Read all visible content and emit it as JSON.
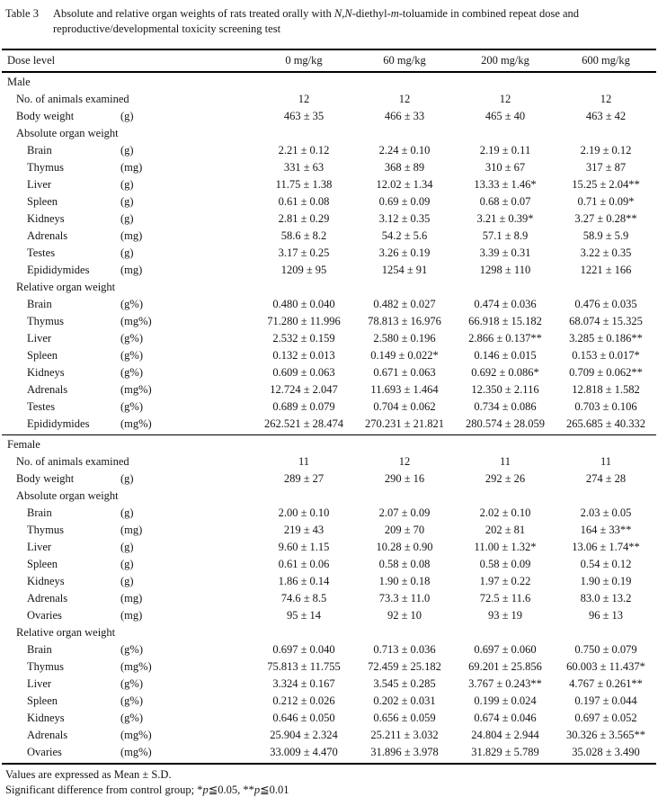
{
  "table": {
    "label": "Table 3",
    "caption_segments": [
      {
        "text": "Absolute and relative organ weights of rats treated orally with "
      },
      {
        "text": "N,N",
        "italic": true
      },
      {
        "text": "-diethyl-"
      },
      {
        "text": "m",
        "italic": true
      },
      {
        "text": "-toluamide in combined repeat dose and reproductive/developmental toxicity screening test"
      }
    ],
    "header": {
      "label": "Dose level",
      "doses": [
        "0 mg/kg",
        "60 mg/kg",
        "200 mg/kg",
        "600 mg/kg"
      ]
    },
    "sections": [
      {
        "title": "Male",
        "rows": [
          {
            "label": "No. of animals examined",
            "unit": "",
            "indent": 1,
            "values": [
              "12",
              "12",
              "12",
              "12"
            ]
          },
          {
            "label": "Body weight",
            "unit": "(g)",
            "indent": 1,
            "values": [
              "463 ± 35",
              "466 ± 33",
              "465 ± 40",
              "463 ± 42"
            ]
          },
          {
            "label": "Absolute organ weight",
            "unit": "",
            "indent": 1,
            "values": []
          },
          {
            "label": "Brain",
            "unit": "(g)",
            "indent": 2,
            "values": [
              "2.21 ± 0.12",
              "2.24 ± 0.10",
              "2.19 ± 0.11",
              "2.19 ± 0.12"
            ]
          },
          {
            "label": "Thymus",
            "unit": "(mg)",
            "indent": 2,
            "values": [
              "331 ± 63",
              "368 ± 89",
              "310 ± 67",
              "317 ± 87"
            ]
          },
          {
            "label": "Liver",
            "unit": "(g)",
            "indent": 2,
            "values": [
              "11.75 ± 1.38",
              "12.02 ± 1.34",
              "13.33 ± 1.46*",
              "15.25 ± 2.04**"
            ]
          },
          {
            "label": "Spleen",
            "unit": "(g)",
            "indent": 2,
            "values": [
              "0.61 ± 0.08",
              "0.69 ± 0.09",
              "0.68 ± 0.07",
              "0.71 ± 0.09*"
            ]
          },
          {
            "label": "Kidneys",
            "unit": "(g)",
            "indent": 2,
            "values": [
              "2.81 ± 0.29",
              "3.12 ± 0.35",
              "3.21 ± 0.39*",
              "3.27 ± 0.28**"
            ]
          },
          {
            "label": "Adrenals",
            "unit": "(mg)",
            "indent": 2,
            "values": [
              "58.6 ± 8.2",
              "54.2 ± 5.6",
              "57.1 ± 8.9",
              "58.9 ± 5.9"
            ]
          },
          {
            "label": "Testes",
            "unit": "(g)",
            "indent": 2,
            "values": [
              "3.17 ± 0.25",
              "3.26 ± 0.19",
              "3.39 ± 0.31",
              "3.22 ± 0.35"
            ]
          },
          {
            "label": "Epididymides",
            "unit": "(mg)",
            "indent": 2,
            "values": [
              "1209 ± 95",
              "1254 ± 91",
              "1298 ± 110",
              "1221 ± 166"
            ]
          },
          {
            "label": "Relative organ weight",
            "unit": "",
            "indent": 1,
            "values": []
          },
          {
            "label": "Brain",
            "unit": "(g%)",
            "indent": 2,
            "values": [
              "0.480 ± 0.040",
              "0.482 ± 0.027",
              "0.474 ± 0.036",
              "0.476 ± 0.035"
            ]
          },
          {
            "label": "Thymus",
            "unit": "(mg%)",
            "indent": 2,
            "values": [
              "71.280 ± 11.996",
              "78.813 ± 16.976",
              "66.918 ± 15.182",
              "68.074 ± 15.325"
            ]
          },
          {
            "label": "Liver",
            "unit": "(g%)",
            "indent": 2,
            "values": [
              "2.532 ± 0.159",
              "2.580 ± 0.196",
              "2.866 ± 0.137**",
              "3.285 ± 0.186**"
            ]
          },
          {
            "label": "Spleen",
            "unit": "(g%)",
            "indent": 2,
            "values": [
              "0.132 ± 0.013",
              "0.149 ± 0.022*",
              "0.146 ± 0.015",
              "0.153 ± 0.017*"
            ]
          },
          {
            "label": "Kidneys",
            "unit": "(g%)",
            "indent": 2,
            "values": [
              "0.609 ± 0.063",
              "0.671 ± 0.063",
              "0.692 ± 0.086*",
              "0.709 ± 0.062**"
            ]
          },
          {
            "label": "Adrenals",
            "unit": "(mg%)",
            "indent": 2,
            "values": [
              "12.724 ± 2.047",
              "11.693 ± 1.464",
              "12.350 ± 2.116",
              "12.818 ± 1.582"
            ]
          },
          {
            "label": "Testes",
            "unit": "(g%)",
            "indent": 2,
            "values": [
              "0.689 ± 0.079",
              "0.704 ± 0.062",
              "0.734 ± 0.086",
              "0.703 ± 0.106"
            ]
          },
          {
            "label": "Epididymides",
            "unit": "(mg%)",
            "indent": 2,
            "values": [
              "262.521 ± 28.474",
              "270.231 ± 21.821",
              "280.574 ± 28.059",
              "265.685 ± 40.332"
            ]
          }
        ]
      },
      {
        "title": "Female",
        "rows": [
          {
            "label": "No. of animals examined",
            "unit": "",
            "indent": 1,
            "values": [
              "11",
              "12",
              "11",
              "11"
            ]
          },
          {
            "label": "Body weight",
            "unit": "(g)",
            "indent": 1,
            "values": [
              "289 ± 27",
              "290 ± 16",
              "292 ± 26",
              "274 ± 28"
            ]
          },
          {
            "label": "Absolute organ weight",
            "unit": "",
            "indent": 1,
            "values": []
          },
          {
            "label": "Brain",
            "unit": "(g)",
            "indent": 2,
            "values": [
              "2.00 ± 0.10",
              "2.07 ± 0.09",
              "2.02 ± 0.10",
              "2.03 ± 0.05"
            ]
          },
          {
            "label": "Thymus",
            "unit": "(mg)",
            "indent": 2,
            "values": [
              "219 ± 43",
              "209 ± 70",
              "202 ± 81",
              "164 ± 33**"
            ]
          },
          {
            "label": "Liver",
            "unit": "(g)",
            "indent": 2,
            "values": [
              "9.60 ± 1.15",
              "10.28 ± 0.90",
              "11.00 ± 1.32*",
              "13.06 ± 1.74**"
            ]
          },
          {
            "label": "Spleen",
            "unit": "(g)",
            "indent": 2,
            "values": [
              "0.61 ± 0.06",
              "0.58 ± 0.08",
              "0.58 ± 0.09",
              "0.54 ± 0.12"
            ]
          },
          {
            "label": "Kidneys",
            "unit": "(g)",
            "indent": 2,
            "values": [
              "1.86 ± 0.14",
              "1.90 ± 0.18",
              "1.97 ± 0.22",
              "1.90 ± 0.19"
            ]
          },
          {
            "label": "Adrenals",
            "unit": "(mg)",
            "indent": 2,
            "values": [
              "74.6 ± 8.5",
              "73.3 ± 11.0",
              "72.5 ± 11.6",
              "83.0 ± 13.2"
            ]
          },
          {
            "label": "Ovaries",
            "unit": "(mg)",
            "indent": 2,
            "values": [
              "95 ± 14",
              "92 ± 10",
              "93 ± 19",
              "96 ± 13"
            ]
          },
          {
            "label": "Relative organ weight",
            "unit": "",
            "indent": 1,
            "values": []
          },
          {
            "label": "Brain",
            "unit": "(g%)",
            "indent": 2,
            "values": [
              "0.697 ± 0.040",
              "0.713 ± 0.036",
              "0.697 ± 0.060",
              "0.750 ± 0.079"
            ]
          },
          {
            "label": "Thymus",
            "unit": "(mg%)",
            "indent": 2,
            "values": [
              "75.813 ± 11.755",
              "72.459 ± 25.182",
              "69.201 ± 25.856",
              "60.003 ± 11.437*"
            ]
          },
          {
            "label": "Liver",
            "unit": "(g%)",
            "indent": 2,
            "values": [
              "3.324 ± 0.167",
              "3.545 ± 0.285",
              "3.767 ± 0.243**",
              "4.767 ± 0.261**"
            ]
          },
          {
            "label": "Spleen",
            "unit": "(g%)",
            "indent": 2,
            "values": [
              "0.212 ± 0.026",
              "0.202 ± 0.031",
              "0.199 ± 0.024",
              "0.197 ± 0.044"
            ]
          },
          {
            "label": "Kidneys",
            "unit": "(g%)",
            "indent": 2,
            "values": [
              "0.646 ± 0.050",
              "0.656 ± 0.059",
              "0.674 ± 0.046",
              "0.697 ± 0.052"
            ]
          },
          {
            "label": "Adrenals",
            "unit": "(mg%)",
            "indent": 2,
            "values": [
              "25.904 ± 2.324",
              "25.211 ± 3.032",
              "24.804 ± 2.944",
              "30.326 ± 3.565**"
            ]
          },
          {
            "label": "Ovaries",
            "unit": "(mg%)",
            "indent": 2,
            "values": [
              "33.009 ± 4.470",
              "31.896 ± 3.978",
              "31.829 ± 5.789",
              "35.028 ± 3.490"
            ]
          }
        ]
      }
    ],
    "footnotes": {
      "mean_sd": "Values are expressed as Mean ± S.D.",
      "significance_segments": [
        {
          "text": "Significant difference from control group; *"
        },
        {
          "text": "p",
          "italic": true
        },
        {
          "text": "≦0.05, **"
        },
        {
          "text": "p",
          "italic": true
        },
        {
          "text": "≦0.01"
        }
      ]
    }
  }
}
